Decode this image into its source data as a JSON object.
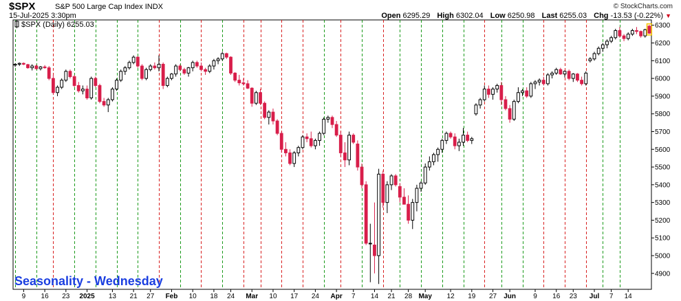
{
  "header": {
    "symbol": "$SPX",
    "description": "S&P 500 Large Cap Index",
    "exchange": "INDX",
    "datetime": "15-Jul-2025 3:30pm",
    "brand": "© StockCharts.com",
    "open_label": "Open",
    "open_value": "6295.29",
    "high_label": "High",
    "high_value": "6302.04",
    "low_label": "Low",
    "low_value": "6250.98",
    "last_label": "Last",
    "last_value": "6255.03",
    "chg_label": "Chg",
    "chg_value": "-13.53 (-0.22%)",
    "chg_direction": "down"
  },
  "series_label": "$SPX (Daily) 6255.03",
  "watermark": "Seasonality - Wednesday",
  "colors": {
    "down": "#d81e4a",
    "up_hollow": "#000000",
    "marker_green": "#1a9a1a",
    "marker_red": "#d81e1e",
    "watermark": "#1a3ee0"
  },
  "chart_data": {
    "type": "candlestick",
    "ylim": [
      4810,
      6330
    ],
    "y_ticks": [
      4900,
      5000,
      5100,
      5200,
      5300,
      5400,
      5500,
      5600,
      5700,
      5800,
      5900,
      6000,
      6100,
      6200,
      6300
    ],
    "y_axis_side": "right",
    "x_labels": [
      {
        "label": "9",
        "i": 2,
        "bold": false
      },
      {
        "label": "16",
        "i": 7,
        "bold": false
      },
      {
        "label": "23",
        "i": 12,
        "bold": false
      },
      {
        "label": "2025",
        "i": 17,
        "bold": true
      },
      {
        "label": "13",
        "i": 23,
        "bold": false
      },
      {
        "label": "21",
        "i": 28,
        "bold": false
      },
      {
        "label": "27",
        "i": 32,
        "bold": false
      },
      {
        "label": "Feb",
        "i": 37,
        "bold": true
      },
      {
        "label": "10",
        "i": 42,
        "bold": false
      },
      {
        "label": "18",
        "i": 47,
        "bold": false
      },
      {
        "label": "24",
        "i": 51,
        "bold": false
      },
      {
        "label": "Mar",
        "i": 56,
        "bold": true
      },
      {
        "label": "10",
        "i": 61,
        "bold": false
      },
      {
        "label": "17",
        "i": 66,
        "bold": false
      },
      {
        "label": "24",
        "i": 71,
        "bold": false
      },
      {
        "label": "Apr",
        "i": 76,
        "bold": true
      },
      {
        "label": "7",
        "i": 80,
        "bold": false
      },
      {
        "label": "14",
        "i": 85,
        "bold": false
      },
      {
        "label": "21",
        "i": 89,
        "bold": false
      },
      {
        "label": "28",
        "i": 93,
        "bold": false
      },
      {
        "label": "May",
        "i": 97,
        "bold": true
      },
      {
        "label": "12",
        "i": 103,
        "bold": false
      },
      {
        "label": "19",
        "i": 108,
        "bold": false
      },
      {
        "label": "27",
        "i": 113,
        "bold": false
      },
      {
        "label": "Jun",
        "i": 117,
        "bold": true
      },
      {
        "label": "9",
        "i": 123,
        "bold": false
      },
      {
        "label": "16",
        "i": 128,
        "bold": false
      },
      {
        "label": "23",
        "i": 132,
        "bold": false
      },
      {
        "label": "Jul",
        "i": 137,
        "bold": true
      },
      {
        "label": "7",
        "i": 141,
        "bold": false
      },
      {
        "label": "14",
        "i": 145,
        "bold": false
      }
    ],
    "seasonality_markers": [
      {
        "i": 0,
        "color": "green"
      },
      {
        "i": 5,
        "color": "green"
      },
      {
        "i": 9,
        "color": "red"
      },
      {
        "i": 14,
        "color": "green"
      },
      {
        "i": 19,
        "color": "green"
      },
      {
        "i": 24,
        "color": "green"
      },
      {
        "i": 29,
        "color": "green"
      },
      {
        "i": 34,
        "color": "red"
      },
      {
        "i": 39,
        "color": "green"
      },
      {
        "i": 44,
        "color": "red"
      },
      {
        "i": 49,
        "color": "green"
      },
      {
        "i": 54,
        "color": "red"
      },
      {
        "i": 58,
        "color": "red"
      },
      {
        "i": 63,
        "color": "red"
      },
      {
        "i": 68,
        "color": "red"
      },
      {
        "i": 73,
        "color": "green"
      },
      {
        "i": 77,
        "color": "red"
      },
      {
        "i": 82,
        "color": "green"
      },
      {
        "i": 87,
        "color": "red"
      },
      {
        "i": 91,
        "color": "green"
      },
      {
        "i": 96,
        "color": "green"
      },
      {
        "i": 101,
        "color": "green"
      },
      {
        "i": 106,
        "color": "green"
      },
      {
        "i": 111,
        "color": "red"
      },
      {
        "i": 115,
        "color": "green"
      },
      {
        "i": 120,
        "color": "green"
      },
      {
        "i": 125,
        "color": "red"
      },
      {
        "i": 130,
        "color": "red"
      },
      {
        "i": 135,
        "color": "red"
      },
      {
        "i": 139,
        "color": "green"
      },
      {
        "i": 143,
        "color": "green"
      }
    ],
    "candles": [
      [
        6075,
        6085,
        6065,
        6080
      ],
      [
        6080,
        6090,
        6070,
        6085
      ],
      [
        6085,
        6090,
        6075,
        6080
      ],
      [
        6078,
        6082,
        6055,
        6060
      ],
      [
        6060,
        6080,
        6045,
        6070
      ],
      [
        6070,
        6078,
        6050,
        6055
      ],
      [
        6055,
        6070,
        6045,
        6065
      ],
      [
        6065,
        6075,
        6055,
        6060
      ],
      [
        6060,
        6070,
        5990,
        6000
      ],
      [
        6000,
        6020,
        5910,
        5920
      ],
      [
        5920,
        5960,
        5900,
        5950
      ],
      [
        5950,
        6000,
        5940,
        5990
      ],
      [
        5990,
        6050,
        5980,
        6040
      ],
      [
        6040,
        6050,
        6000,
        6010
      ],
      [
        6010,
        6020,
        5950,
        5960
      ],
      [
        5960,
        5980,
        5920,
        5930
      ],
      [
        5930,
        5960,
        5910,
        5940
      ],
      [
        5940,
        5960,
        5880,
        5890
      ],
      [
        5890,
        6010,
        5880,
        6000
      ],
      [
        6000,
        6010,
        5950,
        5960
      ],
      [
        5960,
        5970,
        5860,
        5870
      ],
      [
        5870,
        5890,
        5840,
        5850
      ],
      [
        5850,
        5890,
        5810,
        5880
      ],
      [
        5880,
        5950,
        5870,
        5940
      ],
      [
        5940,
        6000,
        5930,
        5990
      ],
      [
        5990,
        6050,
        5980,
        6040
      ],
      [
        6040,
        6070,
        6020,
        6060
      ],
      [
        6060,
        6100,
        6050,
        6090
      ],
      [
        6090,
        6130,
        6080,
        6120
      ],
      [
        6120,
        6125,
        6060,
        6070
      ],
      [
        6070,
        6080,
        5990,
        6000
      ],
      [
        6000,
        6060,
        5990,
        6050
      ],
      [
        6050,
        6080,
        6040,
        6070
      ],
      [
        6070,
        6090,
        6050,
        6060
      ],
      [
        6060,
        6130,
        6040,
        6080
      ],
      [
        6080,
        6090,
        5940,
        5960
      ],
      [
        5960,
        6010,
        5950,
        6000
      ],
      [
        6000,
        6030,
        5990,
        6025
      ],
      [
        6025,
        6080,
        6010,
        6070
      ],
      [
        6070,
        6080,
        6040,
        6050
      ],
      [
        6050,
        6060,
        6020,
        6030
      ],
      [
        6030,
        6065,
        6010,
        6060
      ],
      [
        6060,
        6100,
        6040,
        6090
      ],
      [
        6090,
        6100,
        6060,
        6070
      ],
      [
        6070,
        6090,
        6040,
        6050
      ],
      [
        6050,
        6060,
        6020,
        6040
      ],
      [
        6040,
        6080,
        6030,
        6070
      ],
      [
        6070,
        6110,
        6050,
        6100
      ],
      [
        6100,
        6120,
        6080,
        6110
      ],
      [
        6110,
        6150,
        6100,
        6140
      ],
      [
        6140,
        6145,
        6110,
        6120
      ],
      [
        6120,
        6125,
        6020,
        6030
      ],
      [
        6030,
        6035,
        5980,
        5990
      ],
      [
        5990,
        6020,
        5960,
        5975
      ],
      [
        5975,
        6000,
        5960,
        5970
      ],
      [
        5970,
        5990,
        5940,
        5945
      ],
      [
        5945,
        5950,
        5840,
        5860
      ],
      [
        5860,
        5930,
        5850,
        5920
      ],
      [
        5920,
        5940,
        5850,
        5860
      ],
      [
        5860,
        5870,
        5770,
        5780
      ],
      [
        5780,
        5820,
        5740,
        5810
      ],
      [
        5810,
        5830,
        5740,
        5760
      ],
      [
        5760,
        5770,
        5680,
        5690
      ],
      [
        5690,
        5700,
        5580,
        5600
      ],
      [
        5600,
        5640,
        5560,
        5580
      ],
      [
        5580,
        5600,
        5510,
        5520
      ],
      [
        5520,
        5590,
        5500,
        5580
      ],
      [
        5580,
        5620,
        5560,
        5610
      ],
      [
        5610,
        5680,
        5600,
        5670
      ],
      [
        5670,
        5690,
        5640,
        5660
      ],
      [
        5660,
        5700,
        5610,
        5620
      ],
      [
        5620,
        5660,
        5600,
        5650
      ],
      [
        5650,
        5700,
        5620,
        5690
      ],
      [
        5690,
        5780,
        5680,
        5770
      ],
      [
        5770,
        5790,
        5750,
        5780
      ],
      [
        5780,
        5790,
        5720,
        5740
      ],
      [
        5740,
        5760,
        5670,
        5680
      ],
      [
        5680,
        5700,
        5560,
        5580
      ],
      [
        5580,
        5640,
        5500,
        5540
      ],
      [
        5540,
        5700,
        5510,
        5680
      ],
      [
        5680,
        5690,
        5630,
        5640
      ],
      [
        5630,
        5650,
        5480,
        5500
      ],
      [
        5500,
        5520,
        5380,
        5400
      ],
      [
        5400,
        5420,
        5060,
        5070
      ],
      [
        5070,
        5180,
        4850,
        5070
      ],
      [
        5060,
        5300,
        4900,
        5000
      ],
      [
        5000,
        5490,
        4840,
        5460
      ],
      [
        5460,
        5480,
        5270,
        5300
      ],
      [
        5300,
        5420,
        5240,
        5400
      ],
      [
        5400,
        5460,
        5370,
        5450
      ],
      [
        5450,
        5460,
        5390,
        5400
      ],
      [
        5390,
        5410,
        5300,
        5330
      ],
      [
        5330,
        5380,
        5290,
        5290
      ],
      [
        5290,
        5340,
        5180,
        5200
      ],
      [
        5200,
        5320,
        5150,
        5300
      ],
      [
        5300,
        5400,
        5250,
        5380
      ],
      [
        5380,
        5420,
        5360,
        5410
      ],
      [
        5410,
        5520,
        5400,
        5500
      ],
      [
        5500,
        5560,
        5480,
        5530
      ],
      [
        5530,
        5580,
        5510,
        5570
      ],
      [
        5570,
        5610,
        5530,
        5600
      ],
      [
        5600,
        5660,
        5580,
        5650
      ],
      [
        5650,
        5700,
        5630,
        5690
      ],
      [
        5690,
        5700,
        5660,
        5670
      ],
      [
        5670,
        5690,
        5600,
        5620
      ],
      [
        5620,
        5660,
        5590,
        5640
      ],
      [
        5640,
        5720,
        5620,
        5680
      ],
      [
        5680,
        5700,
        5640,
        5650
      ],
      [
        5650,
        5670,
        5630,
        5660
      ],
      [
        5800,
        5860,
        5790,
        5850
      ],
      [
        5850,
        5890,
        5830,
        5880
      ],
      [
        5880,
        5960,
        5870,
        5940
      ],
      [
        5940,
        5960,
        5890,
        5910
      ],
      [
        5910,
        5950,
        5880,
        5940
      ],
      [
        5940,
        5970,
        5920,
        5960
      ],
      [
        5960,
        5980,
        5850,
        5880
      ],
      [
        5880,
        5900,
        5820,
        5830
      ],
      [
        5830,
        5850,
        5750,
        5770
      ],
      [
        5770,
        5880,
        5760,
        5870
      ],
      [
        5870,
        5950,
        5860,
        5920
      ],
      [
        5920,
        5940,
        5900,
        5930
      ],
      [
        5930,
        5950,
        5890,
        5900
      ],
      [
        5900,
        5980,
        5890,
        5970
      ],
      [
        5970,
        5990,
        5940,
        5980
      ],
      [
        5980,
        6000,
        5960,
        5990
      ],
      [
        5990,
        6010,
        5960,
        5970
      ],
      [
        5970,
        6030,
        5960,
        6020
      ],
      [
        6020,
        6040,
        6000,
        6030
      ],
      [
        6030,
        6060,
        6020,
        6050
      ],
      [
        6050,
        6060,
        6020,
        6025
      ],
      [
        6025,
        6045,
        6005,
        6040
      ],
      [
        6040,
        6050,
        5990,
        6000
      ],
      [
        6000,
        6030,
        5980,
        6025
      ],
      [
        6025,
        6030,
        5980,
        5990
      ],
      [
        5990,
        6010,
        5960,
        5970
      ],
      [
        5970,
        6040,
        5960,
        6030
      ],
      [
        6100,
        6120,
        6090,
        6110
      ],
      [
        6110,
        6150,
        6100,
        6140
      ],
      [
        6140,
        6180,
        6130,
        6170
      ],
      [
        6170,
        6200,
        6150,
        6190
      ],
      [
        6190,
        6220,
        6170,
        6210
      ],
      [
        6210,
        6240,
        6200,
        6230
      ],
      [
        6230,
        6280,
        6220,
        6270
      ],
      [
        6270,
        6290,
        6230,
        6240
      ],
      [
        6240,
        6250,
        6210,
        6225
      ],
      [
        6225,
        6260,
        6215,
        6250
      ],
      [
        6250,
        6280,
        6240,
        6270
      ],
      [
        6270,
        6290,
        6250,
        6265
      ],
      [
        6265,
        6270,
        6230,
        6240
      ],
      [
        6240,
        6280,
        6230,
        6275
      ],
      [
        6295,
        6302,
        6251,
        6255
      ]
    ]
  }
}
